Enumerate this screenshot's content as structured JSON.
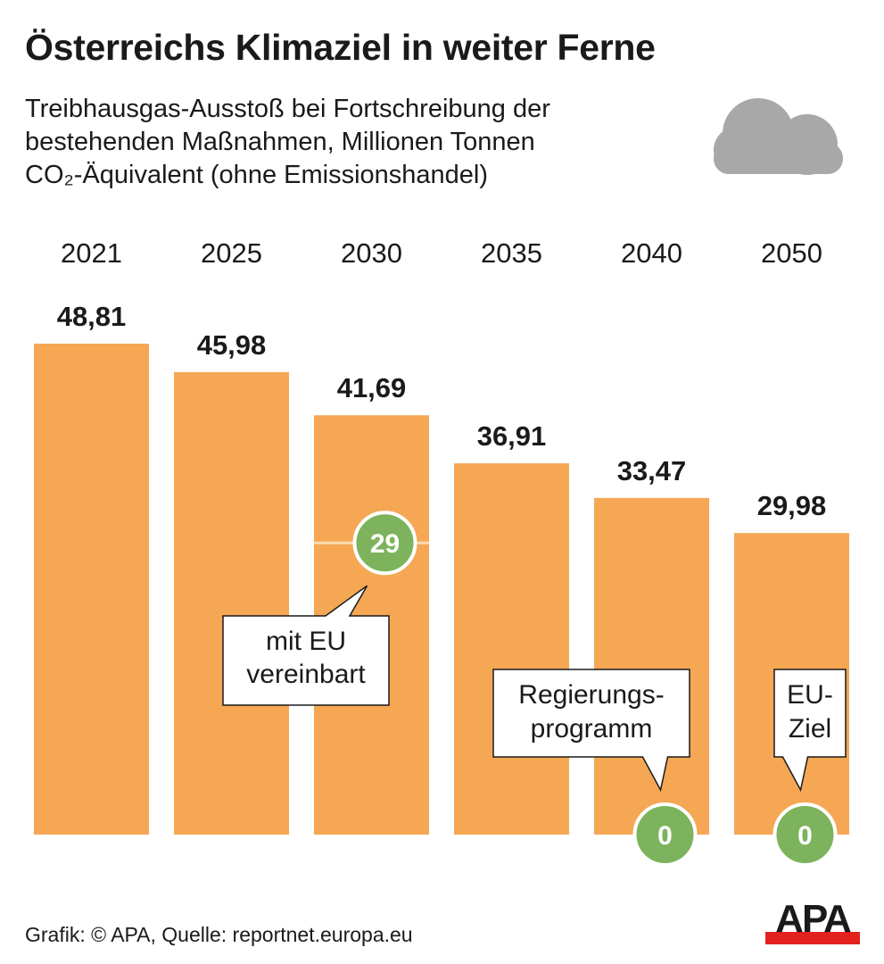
{
  "title": "Österreichs Klimaziel in weiter Ferne",
  "subtitle_lines": [
    "Treibhausgas-Ausstoß bei Fortschreibung der",
    "bestehenden Maßnahmen, Millionen Tonnen",
    "CO₂-Äquivalent (ohne Emissionshandel)"
  ],
  "footer": "Grafik: © APA, Quelle: reportnet.europa.eu",
  "logo_text": "APA",
  "icon": "cloud-icon",
  "colors": {
    "bar": "#f5a754",
    "target": "#7db35c",
    "logo_red": "#e3211f",
    "cloud": "#a8a8a8"
  },
  "chart_data": {
    "type": "bar",
    "categories": [
      "2021",
      "2025",
      "2030",
      "2035",
      "2040",
      "2050"
    ],
    "values": [
      48.81,
      45.98,
      41.69,
      36.91,
      33.47,
      29.98
    ],
    "value_labels": [
      "48,81",
      "45,98",
      "41,69",
      "36,91",
      "33,47",
      "29,98"
    ],
    "ylim": [
      0,
      50
    ],
    "grid": false,
    "targets": [
      {
        "category": "2030",
        "value": 29,
        "label": "29",
        "note": [
          "mit EU",
          "vereinbart"
        ]
      },
      {
        "category": "2040",
        "value": 0,
        "label": "0",
        "note": [
          "Regierungs-",
          "programm"
        ]
      },
      {
        "category": "2050",
        "value": 0,
        "label": "0",
        "note": [
          "EU-",
          "Ziel"
        ]
      }
    ]
  }
}
